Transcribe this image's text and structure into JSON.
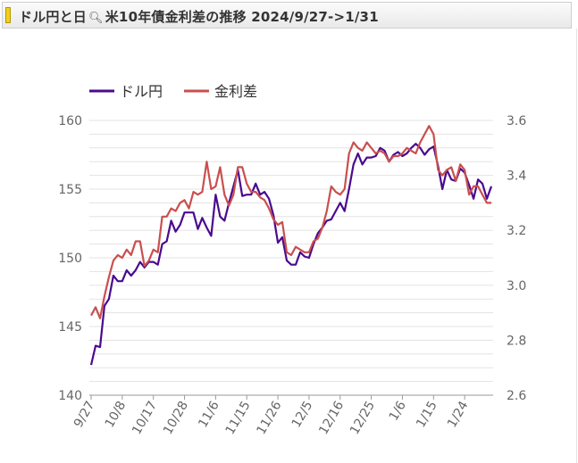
{
  "title": {
    "part1": "ドル円と日",
    "part2": "米10年債金利差の推移 2024/9/27->1/31"
  },
  "colors": {
    "usdjpy": "#4a0a8f",
    "spread": "#c94f4f",
    "grid": "#d8d8d8",
    "accent": "#f3cf1a"
  },
  "icons": {
    "title_marker": "yellow-bar-icon",
    "title_search": "magnifier-icon"
  },
  "chart_data": {
    "type": "line",
    "x_labels": [
      "9/27",
      "10/8",
      "10/17",
      "10/28",
      "11/6",
      "11/15",
      "11/26",
      "12/5",
      "12/16",
      "12/25",
      "1/6",
      "1/15",
      "1/24"
    ],
    "y_left": {
      "range": [
        140,
        160
      ],
      "ticks": [
        "140",
        "145",
        "150",
        "155",
        "160"
      ]
    },
    "y_right": {
      "range": [
        2.6,
        3.6
      ],
      "ticks": [
        "2.6",
        "2.8",
        "3.0",
        "3.2",
        "3.4",
        "3.6"
      ]
    },
    "grid": true,
    "legend_position": "top-left",
    "series": [
      {
        "name": "ドル円",
        "axis": "left",
        "values": [
          142.2,
          143.6,
          143.5,
          146.5,
          147.0,
          148.7,
          148.3,
          148.3,
          149.1,
          148.7,
          149.1,
          149.7,
          149.3,
          149.7,
          149.7,
          149.5,
          151.0,
          151.2,
          152.7,
          151.9,
          152.4,
          153.3,
          153.3,
          153.3,
          152.1,
          152.9,
          152.2,
          151.6,
          154.6,
          153.0,
          152.7,
          154.0,
          155.2,
          156.4,
          154.5,
          154.6,
          154.6,
          155.4,
          154.6,
          154.8,
          154.3,
          153.1,
          151.1,
          151.5,
          149.8,
          149.5,
          149.5,
          150.4,
          150.1,
          150.0,
          151.0,
          151.8,
          152.2,
          152.7,
          152.8,
          153.4,
          154.0,
          153.4,
          155.0,
          156.8,
          157.6,
          156.8,
          157.3,
          157.3,
          157.4,
          158.0,
          157.8,
          157.0,
          157.5,
          157.7,
          157.4,
          157.6,
          158.0,
          158.3,
          158.0,
          157.5,
          157.9,
          158.1,
          156.7,
          155.0,
          156.4,
          155.7,
          155.6,
          156.5,
          156.2,
          155.3,
          154.3,
          155.7,
          155.4,
          154.3,
          155.2
        ],
        "color": "#4a0a8f"
      },
      {
        "name": "金利差",
        "axis": "right",
        "values": [
          2.89,
          2.92,
          2.88,
          2.96,
          3.03,
          3.09,
          3.11,
          3.1,
          3.13,
          3.11,
          3.16,
          3.16,
          3.07,
          3.09,
          3.13,
          3.12,
          3.25,
          3.25,
          3.28,
          3.27,
          3.3,
          3.31,
          3.28,
          3.34,
          3.33,
          3.34,
          3.45,
          3.35,
          3.36,
          3.43,
          3.33,
          3.29,
          3.33,
          3.43,
          3.43,
          3.37,
          3.34,
          3.34,
          3.32,
          3.31,
          3.28,
          3.24,
          3.22,
          3.23,
          3.12,
          3.11,
          3.14,
          3.13,
          3.12,
          3.12,
          3.16,
          3.17,
          3.21,
          3.27,
          3.36,
          3.34,
          3.33,
          3.35,
          3.48,
          3.52,
          3.5,
          3.49,
          3.52,
          3.5,
          3.48,
          3.49,
          3.48,
          3.45,
          3.47,
          3.47,
          3.48,
          3.5,
          3.49,
          3.48,
          3.52,
          3.55,
          3.58,
          3.55,
          3.42,
          3.4,
          3.42,
          3.43,
          3.38,
          3.44,
          3.42,
          3.33,
          3.36,
          3.36,
          3.33,
          3.3,
          3.3
        ],
        "color": "#c94f4f"
      }
    ]
  }
}
